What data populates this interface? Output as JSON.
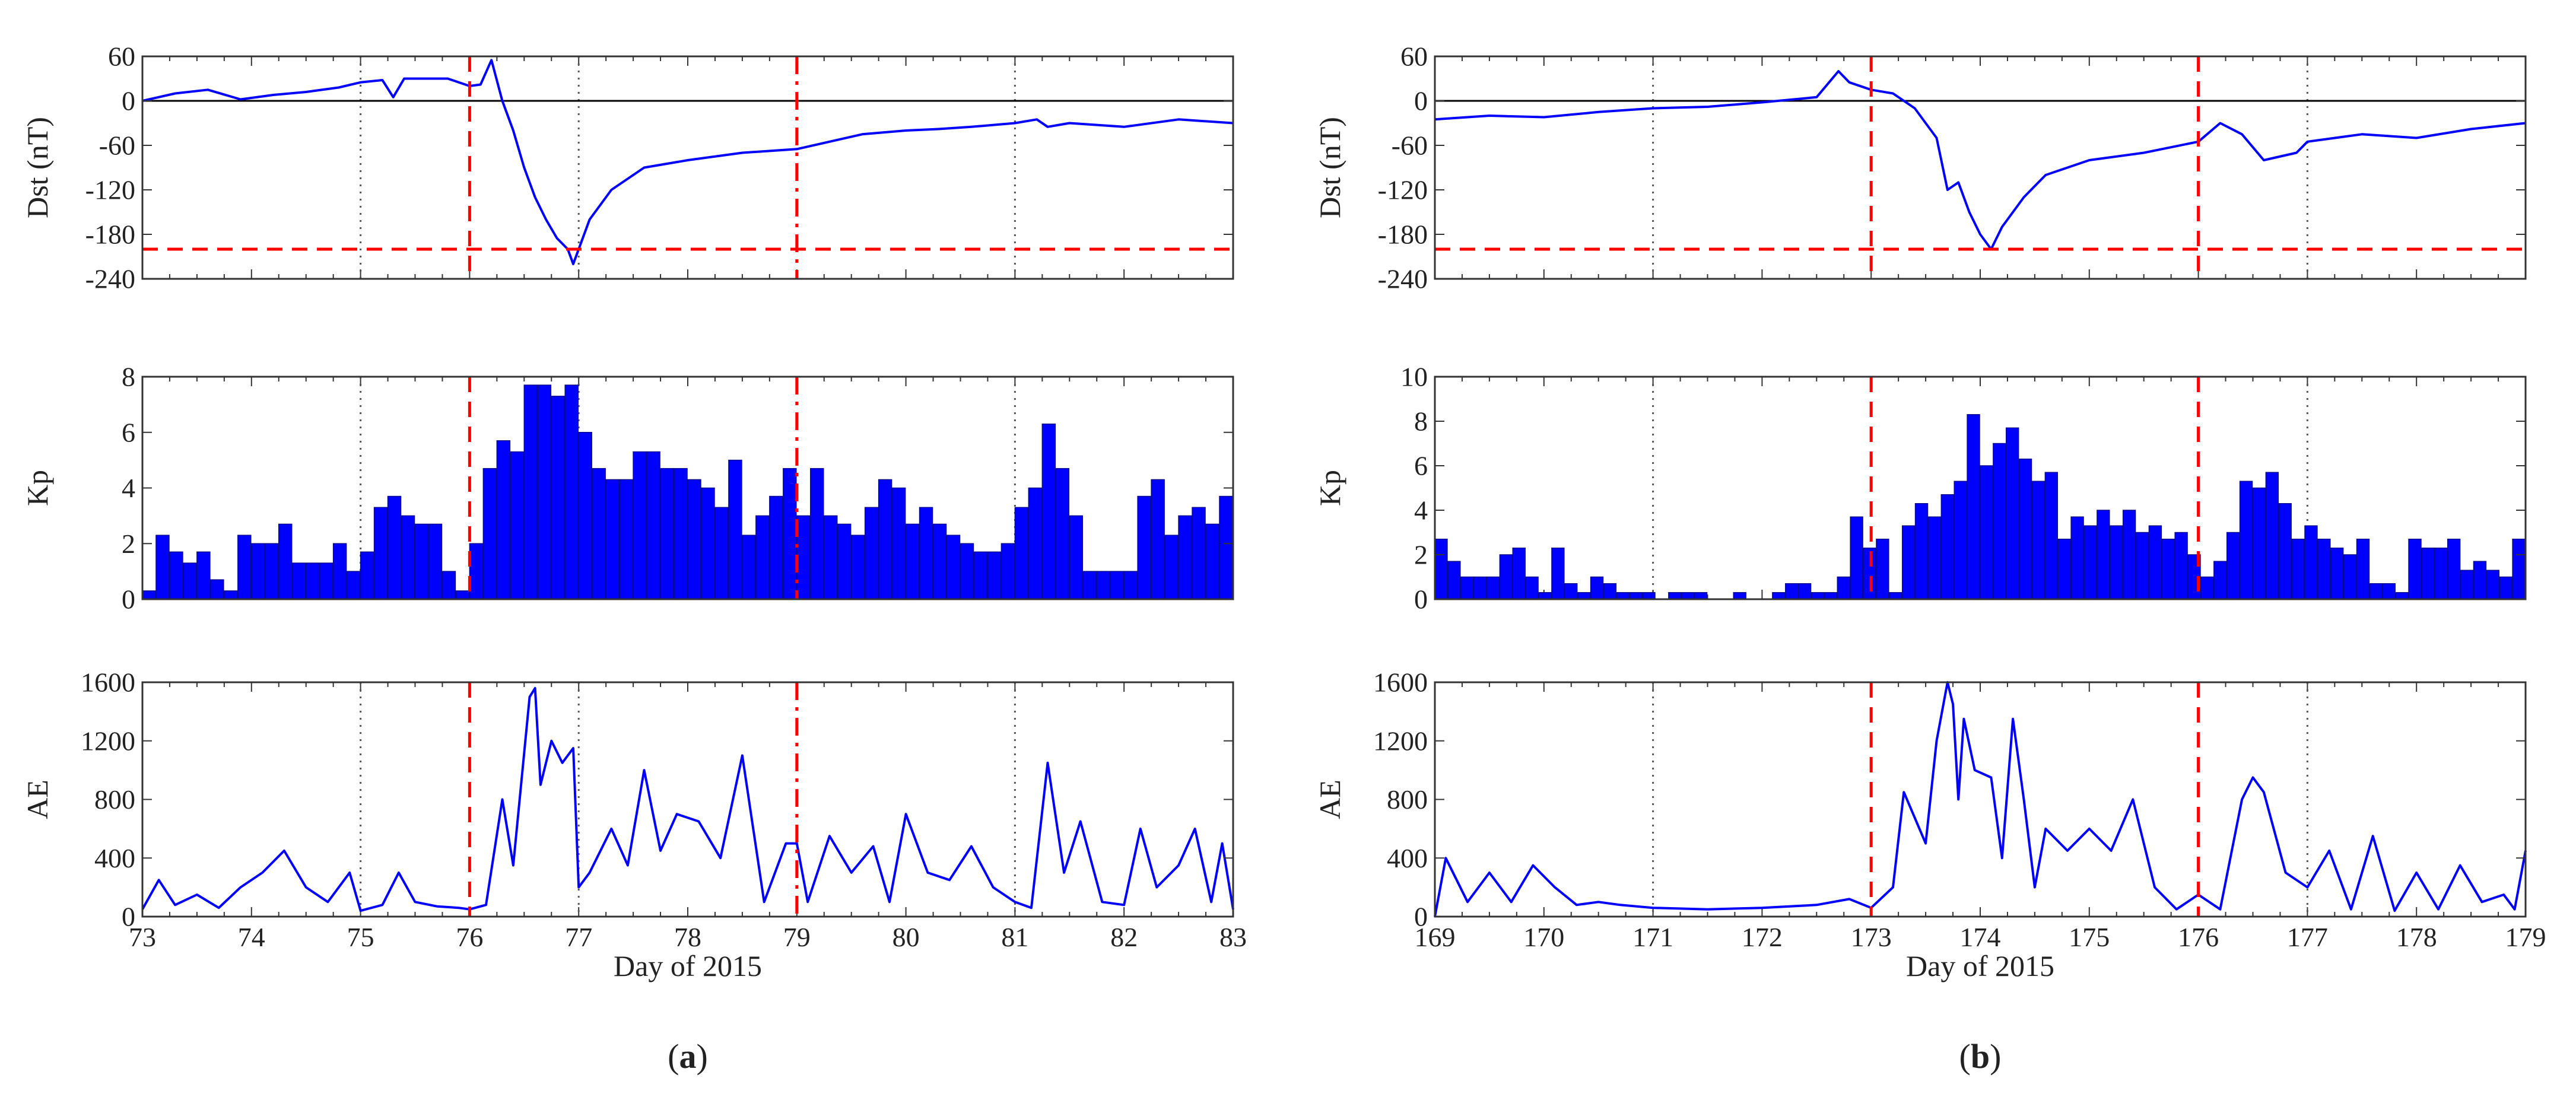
{
  "colors": {
    "series": "#0000ff",
    "marker": "#ff0000",
    "axis": "#333333",
    "zero_line": "#000000",
    "dotted": "#555555"
  },
  "panels": [
    {
      "id": "a",
      "label": "(a)",
      "label_letter": "a",
      "xlabel": "Day of 2015",
      "xlim": [
        73,
        83
      ],
      "xticks": [
        73,
        74,
        75,
        76,
        77,
        78,
        79,
        80,
        81,
        82,
        83
      ],
      "dotted_days": [
        75,
        77,
        81
      ],
      "dashed_days": [
        76
      ],
      "dashdot_days": [
        79
      ]
    },
    {
      "id": "b",
      "label": "(b)",
      "label_letter": "b",
      "xlabel": "Day of 2015",
      "xlim": [
        169,
        179
      ],
      "xticks": [
        169,
        170,
        171,
        172,
        173,
        174,
        175,
        176,
        177,
        178,
        179
      ],
      "dotted_days": [
        171,
        177
      ],
      "dashed_days": [
        173,
        176
      ],
      "dashdot_days": []
    }
  ],
  "chart_data": [
    {
      "panel": "a",
      "type": "line",
      "ylabel": "Dst (nT)",
      "ylim": [
        -240,
        60
      ],
      "yticks": [
        "60",
        "0",
        "-60",
        "-120",
        "-180",
        "-240"
      ],
      "threshold": -200,
      "x": [
        73,
        73.3,
        73.6,
        73.9,
        74.2,
        74.5,
        74.8,
        75.0,
        75.2,
        75.3,
        75.4,
        75.6,
        75.8,
        76.0,
        76.1,
        76.2,
        76.3,
        76.4,
        76.5,
        76.6,
        76.7,
        76.8,
        76.9,
        76.95,
        77.0,
        77.1,
        77.3,
        77.6,
        78.0,
        78.5,
        79.0,
        79.3,
        79.6,
        80.0,
        80.3,
        80.6,
        81.0,
        81.2,
        81.3,
        81.5,
        82.0,
        82.5,
        83.0
      ],
      "y": [
        0,
        10,
        15,
        2,
        8,
        12,
        18,
        25,
        28,
        5,
        30,
        30,
        30,
        20,
        22,
        55,
        0,
        -40,
        -90,
        -130,
        -160,
        -185,
        -200,
        -220,
        -200,
        -160,
        -120,
        -90,
        -80,
        -70,
        -65,
        -55,
        -45,
        -40,
        -38,
        -35,
        -30,
        -25,
        -35,
        -30,
        -35,
        -25,
        -30
      ]
    },
    {
      "panel": "a",
      "type": "bar",
      "ylabel": "Kp",
      "ylim": [
        0,
        8
      ],
      "yticks": [
        "8",
        "6",
        "4",
        "2",
        "0"
      ],
      "values": [
        0.3,
        2.3,
        1.7,
        1.3,
        1.7,
        0.7,
        0.3,
        2.3,
        2.0,
        2.0,
        2.7,
        1.3,
        1.3,
        1.3,
        2.0,
        1.0,
        1.7,
        3.3,
        3.7,
        3.0,
        2.7,
        2.7,
        1.0,
        0.3,
        2.0,
        4.7,
        5.7,
        5.3,
        7.7,
        7.7,
        7.3,
        7.7,
        6.0,
        4.7,
        4.3,
        4.3,
        5.3,
        5.3,
        4.7,
        4.7,
        4.3,
        4.0,
        3.3,
        5.0,
        2.3,
        3.0,
        3.7,
        4.7,
        3.0,
        4.7,
        3.0,
        2.7,
        2.3,
        3.3,
        4.3,
        4.0,
        2.7,
        3.3,
        2.7,
        2.3,
        2.0,
        1.7,
        1.7,
        2.0,
        3.3,
        4.0,
        6.3,
        4.7,
        3.0,
        1.0,
        1.0,
        1.0,
        1.0,
        3.7,
        4.3,
        2.3,
        3.0,
        3.3,
        2.7,
        3.7
      ]
    },
    {
      "panel": "a",
      "type": "line",
      "ylabel": "AE",
      "ylim": [
        0,
        1600
      ],
      "yticks": [
        "1600",
        "1200",
        "800",
        "400",
        "0"
      ],
      "x": [
        73,
        73.15,
        73.3,
        73.5,
        73.7,
        73.9,
        74.1,
        74.3,
        74.5,
        74.7,
        74.9,
        75.0,
        75.2,
        75.35,
        75.5,
        75.7,
        75.9,
        76.0,
        76.15,
        76.3,
        76.4,
        76.55,
        76.6,
        76.65,
        76.75,
        76.85,
        76.95,
        77.0,
        77.1,
        77.3,
        77.45,
        77.6,
        77.75,
        77.9,
        78.1,
        78.3,
        78.5,
        78.7,
        78.9,
        79.0,
        79.1,
        79.3,
        79.5,
        79.7,
        79.85,
        80.0,
        80.2,
        80.4,
        80.6,
        80.8,
        81.0,
        81.15,
        81.3,
        81.45,
        81.6,
        81.8,
        82.0,
        82.15,
        82.3,
        82.5,
        82.65,
        82.8,
        82.9,
        83.0
      ],
      "y": [
        50,
        250,
        80,
        150,
        60,
        200,
        300,
        450,
        200,
        100,
        300,
        40,
        80,
        300,
        100,
        70,
        60,
        50,
        80,
        800,
        350,
        1500,
        1560,
        900,
        1200,
        1050,
        1150,
        200,
        300,
        600,
        350,
        1000,
        450,
        700,
        650,
        400,
        1100,
        100,
        500,
        500,
        100,
        550,
        300,
        480,
        100,
        700,
        300,
        250,
        480,
        200,
        100,
        60,
        1050,
        300,
        650,
        100,
        80,
        600,
        200,
        350,
        600,
        100,
        500,
        50
      ]
    },
    {
      "panel": "b",
      "type": "line",
      "ylabel": "Dst (nT)",
      "ylim": [
        -240,
        60
      ],
      "yticks": [
        "60",
        "0",
        "-60",
        "-120",
        "-180",
        "-240"
      ],
      "threshold": -200,
      "x": [
        169,
        169.5,
        170,
        170.5,
        171,
        171.5,
        172,
        172.5,
        172.7,
        172.8,
        173,
        173.2,
        173.4,
        173.6,
        173.7,
        173.8,
        173.9,
        174.0,
        174.1,
        174.2,
        174.4,
        174.6,
        175,
        175.5,
        176,
        176.2,
        176.4,
        176.6,
        176.9,
        177,
        177.5,
        178,
        178.5,
        179
      ],
      "y": [
        -25,
        -20,
        -22,
        -15,
        -10,
        -8,
        -2,
        5,
        40,
        25,
        15,
        10,
        -10,
        -50,
        -120,
        -110,
        -150,
        -180,
        -200,
        -170,
        -130,
        -100,
        -80,
        -70,
        -55,
        -30,
        -45,
        -80,
        -70,
        -55,
        -45,
        -50,
        -38,
        -30
      ]
    },
    {
      "panel": "b",
      "type": "bar",
      "ylabel": "Kp",
      "ylim": [
        0,
        10
      ],
      "yticks": [
        "10",
        "8",
        "6",
        "4",
        "2",
        "0"
      ],
      "values": [
        2.7,
        1.7,
        1.0,
        1.0,
        1.0,
        2.0,
        2.3,
        1.0,
        0.3,
        2.3,
        0.7,
        0.3,
        1.0,
        0.7,
        0.3,
        0.3,
        0.3,
        0,
        0.3,
        0.3,
        0.3,
        0,
        0,
        0.3,
        0,
        0,
        0.3,
        0.7,
        0.7,
        0.3,
        0.3,
        1.0,
        3.7,
        2.3,
        2.7,
        0.3,
        3.3,
        4.3,
        3.7,
        4.7,
        5.3,
        8.3,
        6.0,
        7.0,
        7.7,
        6.3,
        5.3,
        5.7,
        2.7,
        3.7,
        3.3,
        4.0,
        3.3,
        4.0,
        3.0,
        3.3,
        2.7,
        3.0,
        2.0,
        1.0,
        1.7,
        3.0,
        5.3,
        5.0,
        5.7,
        4.3,
        2.7,
        3.3,
        2.7,
        2.3,
        2.0,
        2.7,
        0.7,
        0.7,
        0.3,
        2.7,
        2.3,
        2.3,
        2.7,
        1.3,
        1.7,
        1.3,
        1.0,
        2.7
      ]
    },
    {
      "panel": "b",
      "type": "line",
      "ylabel": "AE",
      "ylim": [
        0,
        1600
      ],
      "yticks": [
        "1600",
        "1200",
        "800",
        "400",
        "0"
      ],
      "x": [
        169,
        169.1,
        169.3,
        169.5,
        169.7,
        169.9,
        170.1,
        170.3,
        170.5,
        170.7,
        171,
        171.5,
        172,
        172.5,
        172.8,
        173,
        173.2,
        173.3,
        173.5,
        173.6,
        173.7,
        173.75,
        173.8,
        173.85,
        173.95,
        174.1,
        174.2,
        174.3,
        174.4,
        174.5,
        174.6,
        174.8,
        175,
        175.2,
        175.4,
        175.6,
        175.8,
        176,
        176.2,
        176.4,
        176.5,
        176.6,
        176.8,
        177,
        177.2,
        177.4,
        177.6,
        177.8,
        178,
        178.2,
        178.4,
        178.6,
        178.8,
        178.9,
        179
      ],
      "y": [
        0,
        400,
        100,
        300,
        100,
        350,
        200,
        80,
        100,
        80,
        60,
        50,
        60,
        80,
        120,
        60,
        200,
        850,
        500,
        1200,
        1600,
        1450,
        800,
        1350,
        1000,
        950,
        400,
        1350,
        800,
        200,
        600,
        450,
        600,
        450,
        800,
        200,
        50,
        150,
        50,
        800,
        950,
        850,
        300,
        200,
        450,
        50,
        550,
        40,
        300,
        50,
        350,
        100,
        150,
        50,
        450
      ]
    }
  ]
}
